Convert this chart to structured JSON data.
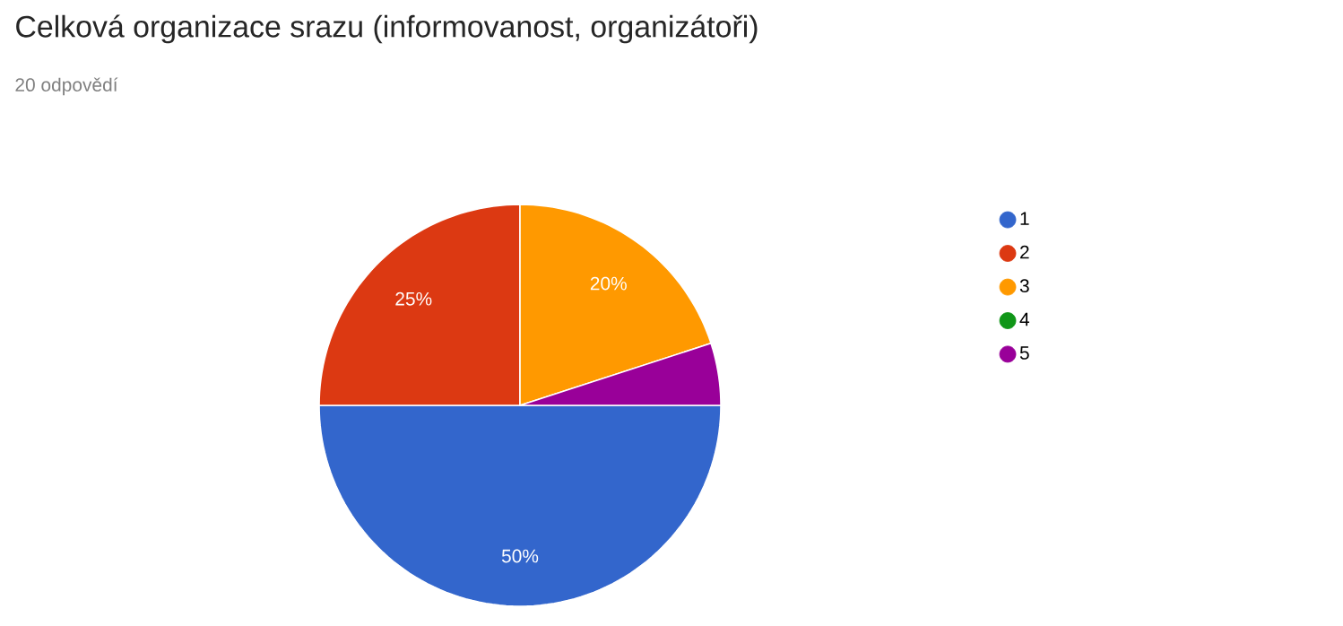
{
  "chart_data": {
    "type": "pie",
    "title": "Celková organizace srazu (informovanost, organizátoři)",
    "subtitle": "20 odpovědí",
    "categories": [
      "1",
      "2",
      "3",
      "4",
      "5"
    ],
    "values": [
      50,
      25,
      20,
      0,
      5
    ],
    "colors": [
      "#3366cc",
      "#dc3912",
      "#ff9900",
      "#109618",
      "#990099"
    ],
    "value_labels": [
      "50%",
      "25%",
      "20%",
      null,
      null
    ],
    "legend": "right"
  }
}
